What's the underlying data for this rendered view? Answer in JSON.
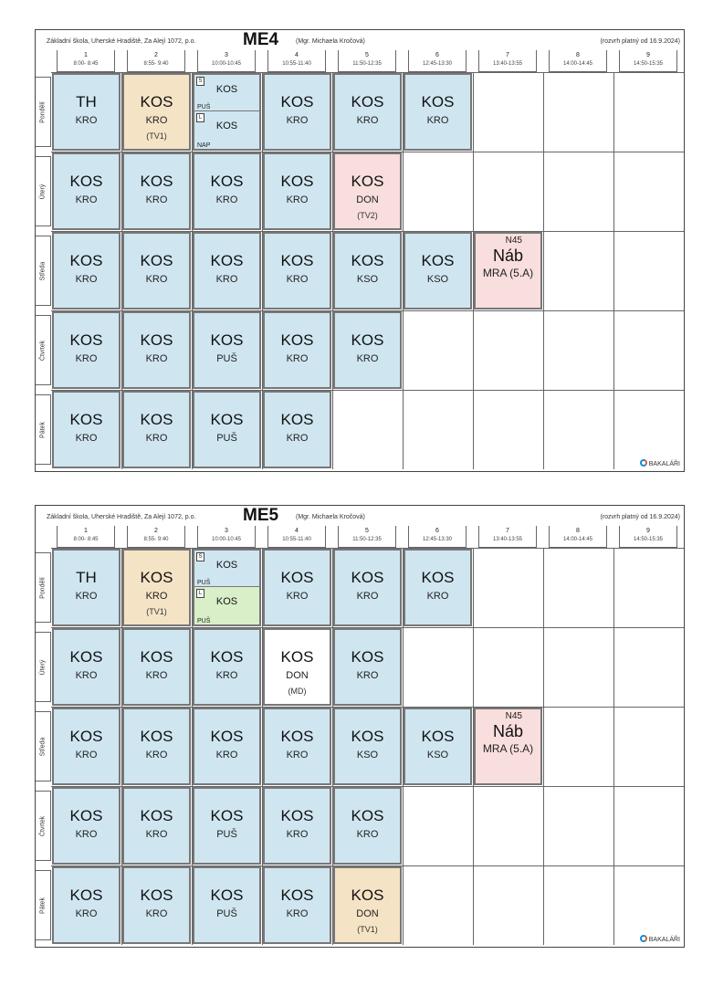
{
  "timetables": [
    {
      "school": "Základní škola, Uherské Hradiště, Za Alejí 1072, p.o.",
      "class_name": "ME4",
      "teacher": "(Mgr. Michaela Kročová)",
      "validity": "(rozvrh platný od 16.9.2024)",
      "brand": "BAKALÁŘI",
      "periods": [
        {
          "num": "1",
          "time": "8:00- 8:45"
        },
        {
          "num": "2",
          "time": "8:55- 9:40"
        },
        {
          "num": "3",
          "time": "10:00-10:45"
        },
        {
          "num": "4",
          "time": "10:55-11:40"
        },
        {
          "num": "5",
          "time": "11:50-12:35"
        },
        {
          "num": "6",
          "time": "12:45-13:30"
        },
        {
          "num": "7",
          "time": "13:40-13:55"
        },
        {
          "num": "8",
          "time": "14:00-14:45"
        },
        {
          "num": "9",
          "time": "14:50-15:35"
        }
      ],
      "days": [
        {
          "name": "Pondělí",
          "lessons": [
            {
              "subject": "TH",
              "teacher": "KRO",
              "color": "blue"
            },
            {
              "subject": "KOS",
              "teacher": "KRO",
              "group": "(TV1)",
              "color": "tan"
            },
            {
              "split": [
                {
                  "tag": "S",
                  "subject": "KOS",
                  "teacher": "PUŠ",
                  "color": "blue"
                },
                {
                  "tag": "L",
                  "subject": "KOS",
                  "teacher": "NAP",
                  "color": "blue"
                }
              ]
            },
            {
              "subject": "KOS",
              "teacher": "KRO",
              "color": "blue"
            },
            {
              "subject": "KOS",
              "teacher": "KRO",
              "color": "blue"
            },
            {
              "subject": "KOS",
              "teacher": "KRO",
              "color": "blue"
            }
          ]
        },
        {
          "name": "Úterý",
          "lessons": [
            {
              "subject": "KOS",
              "teacher": "KRO",
              "color": "blue"
            },
            {
              "subject": "KOS",
              "teacher": "KRO",
              "color": "blue"
            },
            {
              "subject": "KOS",
              "teacher": "KRO",
              "color": "blue"
            },
            {
              "subject": "KOS",
              "teacher": "KRO",
              "color": "blue"
            },
            {
              "subject": "KOS",
              "teacher": "DON",
              "group": "(TV2)",
              "color": "pink"
            }
          ]
        },
        {
          "name": "Středa",
          "lessons": [
            {
              "subject": "KOS",
              "teacher": "KRO",
              "color": "blue"
            },
            {
              "subject": "KOS",
              "teacher": "KRO",
              "color": "blue"
            },
            {
              "subject": "KOS",
              "teacher": "KRO",
              "color": "blue"
            },
            {
              "subject": "KOS",
              "teacher": "KRO",
              "color": "blue"
            },
            {
              "subject": "KOS",
              "teacher": "KSO",
              "color": "blue"
            },
            {
              "subject": "KOS",
              "teacher": "KSO",
              "color": "blue"
            },
            {
              "subject": "Náb",
              "teacher": "MRA (5.A)",
              "room": "N45",
              "color": "pink"
            }
          ]
        },
        {
          "name": "Čtvrtek",
          "lessons": [
            {
              "subject": "KOS",
              "teacher": "KRO",
              "color": "blue"
            },
            {
              "subject": "KOS",
              "teacher": "KRO",
              "color": "blue"
            },
            {
              "subject": "KOS",
              "teacher": "PUŠ",
              "color": "blue"
            },
            {
              "subject": "KOS",
              "teacher": "KRO",
              "color": "blue"
            },
            {
              "subject": "KOS",
              "teacher": "KRO",
              "color": "blue"
            }
          ]
        },
        {
          "name": "Pátek",
          "lessons": [
            {
              "subject": "KOS",
              "teacher": "KRO",
              "color": "blue"
            },
            {
              "subject": "KOS",
              "teacher": "KRO",
              "color": "blue"
            },
            {
              "subject": "KOS",
              "teacher": "PUŠ",
              "color": "blue"
            },
            {
              "subject": "KOS",
              "teacher": "KRO",
              "color": "blue"
            }
          ]
        }
      ]
    },
    {
      "school": "Základní škola, Uherské Hradiště, Za Alejí 1072, p.o.",
      "class_name": "ME5",
      "teacher": "(Mgr. Michaela Kročová)",
      "validity": "(rozvrh platný od 16.9.2024)",
      "brand": "BAKALÁŘI",
      "periods": [
        {
          "num": "1",
          "time": "8:00- 8:45"
        },
        {
          "num": "2",
          "time": "8:55- 9:40"
        },
        {
          "num": "3",
          "time": "10:00-10:45"
        },
        {
          "num": "4",
          "time": "10:55-11:40"
        },
        {
          "num": "5",
          "time": "11:50-12:35"
        },
        {
          "num": "6",
          "time": "12:45-13:30"
        },
        {
          "num": "7",
          "time": "13:40-13:55"
        },
        {
          "num": "8",
          "time": "14:00-14:45"
        },
        {
          "num": "9",
          "time": "14:50-15:35"
        }
      ],
      "days": [
        {
          "name": "Pondělí",
          "lessons": [
            {
              "subject": "TH",
              "teacher": "KRO",
              "color": "blue"
            },
            {
              "subject": "KOS",
              "teacher": "KRO",
              "group": "(TV1)",
              "color": "tan"
            },
            {
              "split": [
                {
                  "tag": "S",
                  "subject": "KOS",
                  "teacher": "PUŠ",
                  "color": "blue"
                },
                {
                  "tag": "L",
                  "subject": "KOS",
                  "teacher": "PUŠ",
                  "color": "green"
                }
              ]
            },
            {
              "subject": "KOS",
              "teacher": "KRO",
              "color": "blue"
            },
            {
              "subject": "KOS",
              "teacher": "KRO",
              "color": "blue"
            },
            {
              "subject": "KOS",
              "teacher": "KRO",
              "color": "blue"
            }
          ]
        },
        {
          "name": "Úterý",
          "lessons": [
            {
              "subject": "KOS",
              "teacher": "KRO",
              "color": "blue"
            },
            {
              "subject": "KOS",
              "teacher": "KRO",
              "color": "blue"
            },
            {
              "subject": "KOS",
              "teacher": "KRO",
              "color": "blue"
            },
            {
              "subject": "KOS",
              "teacher": "DON",
              "group": "(MD)",
              "color": "white"
            },
            {
              "subject": "KOS",
              "teacher": "KRO",
              "color": "blue"
            }
          ]
        },
        {
          "name": "Středa",
          "lessons": [
            {
              "subject": "KOS",
              "teacher": "KRO",
              "color": "blue"
            },
            {
              "subject": "KOS",
              "teacher": "KRO",
              "color": "blue"
            },
            {
              "subject": "KOS",
              "teacher": "KRO",
              "color": "blue"
            },
            {
              "subject": "KOS",
              "teacher": "KRO",
              "color": "blue"
            },
            {
              "subject": "KOS",
              "teacher": "KSO",
              "color": "blue"
            },
            {
              "subject": "KOS",
              "teacher": "KSO",
              "color": "blue"
            },
            {
              "subject": "Náb",
              "teacher": "MRA (5.A)",
              "room": "N45",
              "color": "pink"
            }
          ]
        },
        {
          "name": "Čtvrtek",
          "lessons": [
            {
              "subject": "KOS",
              "teacher": "KRO",
              "color": "blue"
            },
            {
              "subject": "KOS",
              "teacher": "KRO",
              "color": "blue"
            },
            {
              "subject": "KOS",
              "teacher": "PUŠ",
              "color": "blue"
            },
            {
              "subject": "KOS",
              "teacher": "KRO",
              "color": "blue"
            },
            {
              "subject": "KOS",
              "teacher": "KRO",
              "color": "blue"
            }
          ]
        },
        {
          "name": "Pátek",
          "lessons": [
            {
              "subject": "KOS",
              "teacher": "KRO",
              "color": "blue"
            },
            {
              "subject": "KOS",
              "teacher": "KRO",
              "color": "blue"
            },
            {
              "subject": "KOS",
              "teacher": "PUŠ",
              "color": "blue"
            },
            {
              "subject": "KOS",
              "teacher": "KRO",
              "color": "blue"
            },
            {
              "subject": "KOS",
              "teacher": "DON",
              "group": "(TV1)",
              "color": "tan"
            }
          ]
        }
      ]
    }
  ]
}
